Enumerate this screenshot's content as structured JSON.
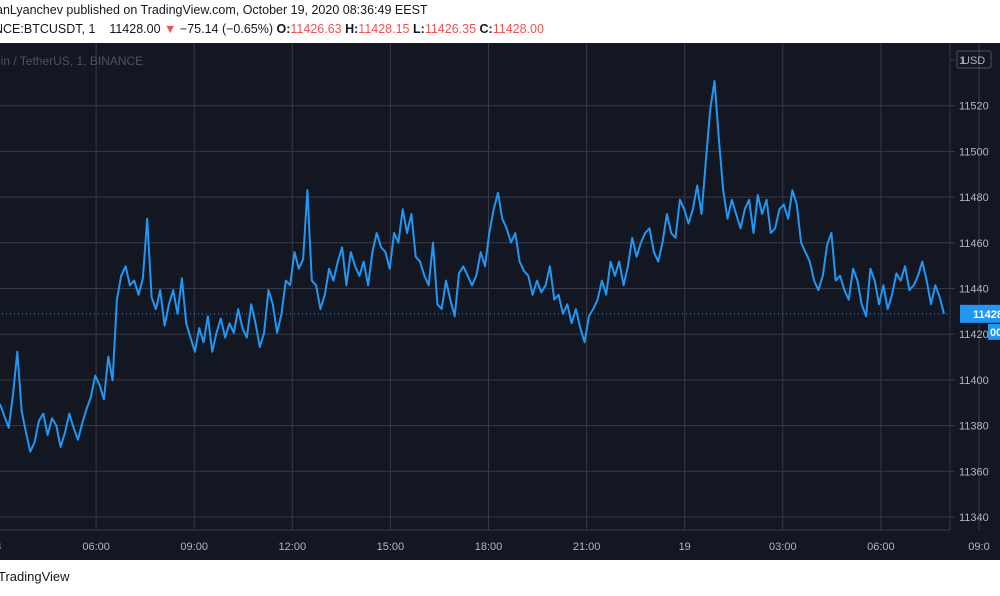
{
  "header": {
    "publisher_line": "anLyanchev published on TradingView.com, October 19, 2020 08:36:49 EEST",
    "symbol": "NCE:BTCUSDT, 1",
    "last_price": "11428.00",
    "change_arrow": "▼",
    "change": "−75.14 (−0.65%)",
    "open_label": "O:",
    "open": "11426.63",
    "high_label": "H:",
    "high": "11428.15",
    "low_label": "L:",
    "low": "11426.35",
    "close_label": "C:",
    "close": "11428.00"
  },
  "footer": {
    "brand": "TradingView"
  },
  "colors": {
    "background": "#131722",
    "line": "#2196f3",
    "grid": "#363a45",
    "text": "#b2b5be",
    "price_tag": "#2196f3"
  },
  "chart_data": {
    "type": "line",
    "legend": "oin / TetherUS, 1, BINANCE",
    "currency": "USD",
    "y_ticks": [
      "1",
      "11520",
      "11500",
      "11480",
      "11460",
      "11440",
      "11420",
      "11400",
      "11380",
      "11360",
      "11340"
    ],
    "x_ticks": [
      "8",
      "06:00",
      "09:00",
      "12:00",
      "15:00",
      "18:00",
      "21:00",
      "19",
      "03:00",
      "06:00",
      "09:0"
    ],
    "last_price_tag": "11428",
    "countdown_tag": "00",
    "ylim": [
      11335,
      11540
    ],
    "series": [
      {
        "values": [
          11388,
          11383,
          11378,
          11392,
          11410,
          11385,
          11376,
          11368,
          11372,
          11381,
          11384,
          11375,
          11382,
          11379,
          11370,
          11376,
          11384,
          11378,
          11373,
          11380,
          11386,
          11391,
          11400,
          11396,
          11390,
          11408,
          11398,
          11432,
          11442,
          11446,
          11438,
          11440,
          11434,
          11441,
          11466,
          11433,
          11428,
          11436,
          11421,
          11430,
          11436,
          11426,
          11441,
          11422,
          11416,
          11410,
          11420,
          11414,
          11425,
          11410,
          11418,
          11424,
          11416,
          11422,
          11418,
          11428,
          11420,
          11416,
          11430,
          11422,
          11412,
          11418,
          11436,
          11430,
          11418,
          11426,
          11440,
          11438,
          11452,
          11445,
          11449,
          11478,
          11440,
          11438,
          11428,
          11434,
          11445,
          11440,
          11448,
          11454,
          11438,
          11452,
          11446,
          11442,
          11448,
          11438,
          11452,
          11460,
          11454,
          11452,
          11445,
          11460,
          11456,
          11470,
          11460,
          11468,
          11450,
          11448,
          11442,
          11438,
          11456,
          11430,
          11428,
          11440,
          11432,
          11425,
          11443,
          11446,
          11442,
          11438,
          11442,
          11452,
          11446,
          11460,
          11470,
          11477,
          11466,
          11462,
          11456,
          11460,
          11448,
          11444,
          11442,
          11434,
          11440,
          11435,
          11438,
          11446,
          11432,
          11434,
          11426,
          11430,
          11422,
          11428,
          11420,
          11414,
          11425,
          11428,
          11432,
          11440,
          11434,
          11448,
          11442,
          11448,
          11438,
          11446,
          11458,
          11450,
          11456,
          11460,
          11462,
          11452,
          11448,
          11456,
          11468,
          11460,
          11458,
          11474,
          11470,
          11464,
          11470,
          11480,
          11468,
          11490,
          11512,
          11524,
          11500,
          11478,
          11466,
          11474,
          11468,
          11462,
          11470,
          11474,
          11460,
          11476,
          11468,
          11474,
          11460,
          11462,
          11470,
          11472,
          11466,
          11478,
          11472,
          11456,
          11452,
          11448,
          11440,
          11436,
          11442,
          11455,
          11460,
          11440,
          11442,
          11436,
          11432,
          11445,
          11440,
          11430,
          11425,
          11445,
          11440,
          11430,
          11438,
          11428,
          11434,
          11443,
          11440,
          11446,
          11436,
          11438,
          11442,
          11448,
          11440,
          11430,
          11438,
          11433,
          11426
        ]
      }
    ]
  }
}
